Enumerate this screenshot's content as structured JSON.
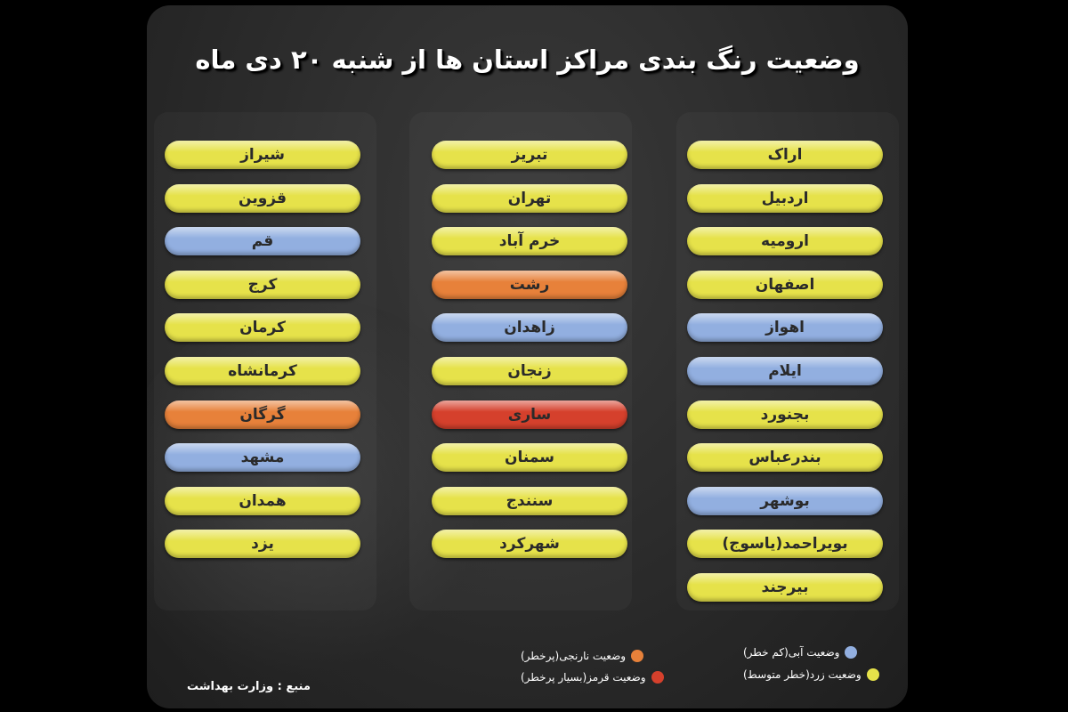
{
  "title": "وضعیت رنگ بندی مراکز استان ها از شنبه ۲۰ دی ماه",
  "colors": {
    "yellow": "#e6e24a",
    "blue": "#92afe0",
    "orange": "#e7813a",
    "red": "#d5402c"
  },
  "columns": [
    [
      {
        "name": "اراک",
        "status": "yellow"
      },
      {
        "name": "اردبیل",
        "status": "yellow"
      },
      {
        "name": "ارومیه",
        "status": "yellow"
      },
      {
        "name": "اصفهان",
        "status": "yellow"
      },
      {
        "name": "اهواز",
        "status": "blue"
      },
      {
        "name": "ایلام",
        "status": "blue"
      },
      {
        "name": "بجنورد",
        "status": "yellow"
      },
      {
        "name": "بندرعباس",
        "status": "yellow"
      },
      {
        "name": "بوشهر",
        "status": "blue"
      },
      {
        "name": "بویراحمد(یاسوج)",
        "status": "yellow"
      },
      {
        "name": "بیرجند",
        "status": "yellow"
      }
    ],
    [
      {
        "name": "تبریز",
        "status": "yellow"
      },
      {
        "name": "تهران",
        "status": "yellow"
      },
      {
        "name": "خرم آباد",
        "status": "yellow"
      },
      {
        "name": "رشت",
        "status": "orange"
      },
      {
        "name": "زاهدان",
        "status": "blue"
      },
      {
        "name": "زنجان",
        "status": "yellow"
      },
      {
        "name": "ساری",
        "status": "red"
      },
      {
        "name": "سمنان",
        "status": "yellow"
      },
      {
        "name": "سنندج",
        "status": "yellow"
      },
      {
        "name": "شهرکرد",
        "status": "yellow"
      }
    ],
    [
      {
        "name": "شیراز",
        "status": "yellow"
      },
      {
        "name": "قزوین",
        "status": "yellow"
      },
      {
        "name": "قم",
        "status": "blue"
      },
      {
        "name": "کرج",
        "status": "yellow"
      },
      {
        "name": "کرمان",
        "status": "yellow"
      },
      {
        "name": "کرمانشاه",
        "status": "yellow"
      },
      {
        "name": "گرگان",
        "status": "orange"
      },
      {
        "name": "مشهد",
        "status": "blue"
      },
      {
        "name": "همدان",
        "status": "yellow"
      },
      {
        "name": "یزد",
        "status": "yellow"
      }
    ]
  ],
  "legend": {
    "blue": "وضعیت آبی(کم خطر)",
    "yellow": "وضعیت زرد(خطر متوسط)",
    "orange": "وضعیت نارنجی(پرخطر)",
    "red": "وضعیت قرمز(بسیار پرخطر)"
  },
  "source": "منبع :  وزارت بهداشت"
}
